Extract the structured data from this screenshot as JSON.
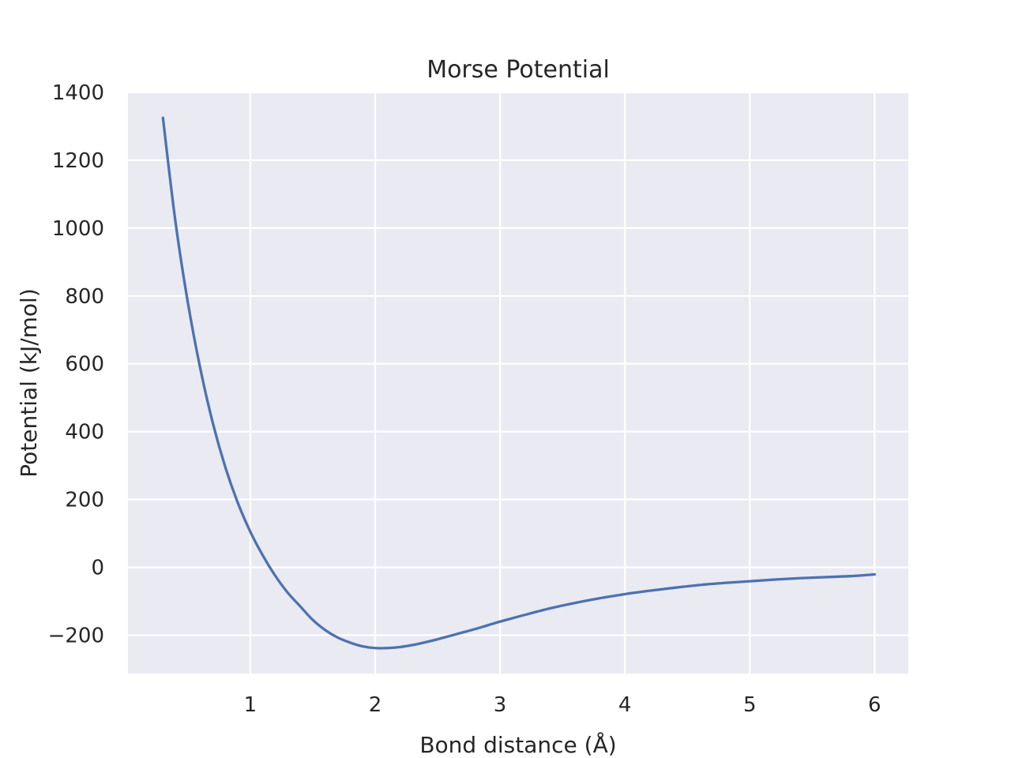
{
  "chart_data": {
    "type": "line",
    "title": "Morse Potential",
    "xlabel": "Bond distance (Å)",
    "ylabel": "Potential (kJ/mol)",
    "xlim": [
      0.02,
      6.27
    ],
    "ylim": [
      -313,
      1400
    ],
    "xticks": [
      {
        "value": 1,
        "label": "1"
      },
      {
        "value": 2,
        "label": "2"
      },
      {
        "value": 3,
        "label": "3"
      },
      {
        "value": 4,
        "label": "4"
      },
      {
        "value": 5,
        "label": "5"
      },
      {
        "value": 6,
        "label": "6"
      }
    ],
    "yticks": [
      {
        "value": -200,
        "label": "−200"
      },
      {
        "value": 0,
        "label": "0"
      },
      {
        "value": 200,
        "label": "200"
      },
      {
        "value": 400,
        "label": "400"
      },
      {
        "value": 600,
        "label": "600"
      },
      {
        "value": 800,
        "label": "800"
      },
      {
        "value": 1000,
        "label": "1000"
      },
      {
        "value": 1200,
        "label": "1200"
      },
      {
        "value": 1400,
        "label": "1400"
      }
    ],
    "grid": true,
    "colors": {
      "background": "#eaeaf2",
      "grid": "#ffffff",
      "line": "#4c72b0"
    },
    "series": [
      {
        "x": [
          0.3,
          0.4,
          0.5,
          0.6,
          0.7,
          0.8,
          0.9,
          1.0,
          1.1,
          1.2,
          1.3,
          1.4,
          1.5,
          1.6,
          1.7,
          1.8,
          1.9,
          2.0,
          2.1,
          2.2,
          2.3,
          2.4,
          2.5,
          2.6,
          2.7,
          2.8,
          2.9,
          3.0,
          3.2,
          3.4,
          3.6,
          3.8,
          4.0,
          4.2,
          4.4,
          4.6,
          4.8,
          5.0,
          5.2,
          5.4,
          5.6,
          5.8,
          6.0
        ],
        "y": [
          1325,
          1020,
          780,
          585,
          425,
          295,
          190,
          105,
          35,
          -25,
          -75,
          -115,
          -155,
          -185,
          -207,
          -222,
          -233,
          -238,
          -238,
          -235,
          -229,
          -221,
          -212,
          -202,
          -192,
          -182,
          -171,
          -160,
          -140,
          -121,
          -105,
          -91,
          -79,
          -69,
          -60,
          -52,
          -46,
          -41,
          -36,
          -32,
          -29,
          -26,
          -21
        ]
      }
    ]
  }
}
